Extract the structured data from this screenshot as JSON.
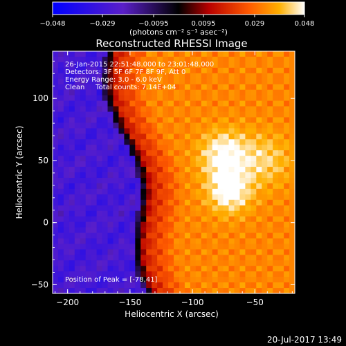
{
  "chart_data": {
    "type": "heatmap",
    "title": "Reconstructed RHESSI Image",
    "xlabel": "Heliocentric X (arcsec)",
    "ylabel": "Heliocentric Y (arcsec)",
    "xlim": [
      -212,
      -18
    ],
    "ylim": [
      -57,
      138
    ],
    "x_ticks": [
      -200,
      -150,
      -100,
      -50
    ],
    "y_ticks": [
      -50,
      0,
      50,
      100
    ],
    "x_tick_labels": [
      "−200",
      "−150",
      "−100",
      "−50"
    ],
    "y_tick_labels": [
      "−50",
      "0",
      "50",
      "100"
    ],
    "colorbar": {
      "min": -0.048,
      "max": 0.048,
      "ticks": [
        -0.048,
        -0.029,
        -0.0095,
        0.0095,
        0.029,
        0.048
      ],
      "tick_labels": [
        "−0.048",
        "−0.029",
        "−0.0095",
        "0.0095",
        "0.029",
        "0.048"
      ],
      "unit_label": "(photons cm⁻² s⁻¹ asec⁻²)"
    },
    "info_lines": [
      "26-Jan-2015 22:51:48.000 to 23:01:48.000",
      "Detectors: 3F 5F 6F 7F 8F 9F, Att 0",
      "Energy Range: 3.0 - 6.0 keV",
      "Clean     Total counts: 7.14E+04"
    ],
    "peak_label": "Position of Peak = [-78,41]",
    "peak_position": [
      -78,
      41
    ],
    "grid": false
  },
  "footer": {
    "timestamp": "20-Jul-2017 13:49"
  }
}
